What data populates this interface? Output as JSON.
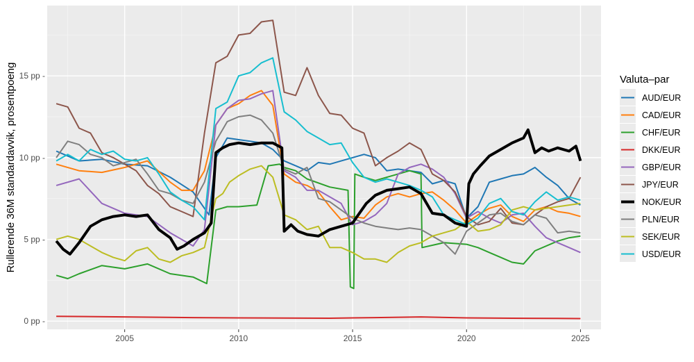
{
  "chart_data": {
    "type": "line",
    "title": "",
    "xlabel": "",
    "ylabel": "Rullerende 36M standardavvik, prosentpoeng",
    "xlim": [
      2001.6,
      2025.9
    ],
    "ylim": [
      -0.5,
      19.3
    ],
    "x_ticks": [
      2005,
      2010,
      2015,
      2020,
      2025
    ],
    "x_tick_labels": [
      "2005",
      "2010",
      "2015",
      "2020",
      "2025"
    ],
    "y_ticks": [
      0,
      5,
      10,
      15
    ],
    "y_tick_labels": [
      "0 pp -",
      "5 pp -",
      "10 pp -",
      "15 pp -"
    ],
    "grid": true,
    "legend_title": "Valuta–par",
    "legend_position": "right",
    "series": [
      {
        "name": "AUD/EUR",
        "color": "#1f77b4",
        "width": 2,
        "x": [
          2002,
          2003,
          2004,
          2005,
          2006,
          2007,
          2008,
          2008.7,
          2009,
          2009.5,
          2010,
          2010.5,
          2011,
          2011.5,
          2012,
          2012.5,
          2013,
          2013.5,
          2014,
          2014.5,
          2015,
          2015.5,
          2016,
          2016.5,
          2017,
          2017.5,
          2018,
          2018.5,
          2019,
          2019.5,
          2020,
          2020.5,
          2021,
          2021.5,
          2022,
          2022.5,
          2023,
          2023.5,
          2024,
          2024.5,
          2025
        ],
        "y": [
          10.4,
          9.8,
          9.9,
          9.6,
          9.5,
          8.8,
          7.9,
          6.5,
          10.0,
          11.2,
          11.1,
          11.0,
          10.9,
          10.5,
          9.8,
          9.5,
          9.2,
          9.7,
          9.6,
          9.8,
          10.0,
          10.2,
          10.0,
          9.2,
          9.3,
          9.2,
          9.1,
          8.4,
          8.6,
          8.4,
          6.3,
          7.0,
          8.5,
          8.7,
          8.9,
          9.0,
          9.4,
          8.8,
          8.3,
          7.5,
          7.1
        ]
      },
      {
        "name": "CAD/EUR",
        "color": "#ff7f0e",
        "width": 2,
        "x": [
          2002,
          2003,
          2004,
          2005,
          2006,
          2007,
          2007.5,
          2008,
          2008.5,
          2009,
          2009.5,
          2010,
          2010.5,
          2011,
          2011.5,
          2012,
          2012.5,
          2013,
          2013.5,
          2014,
          2014.5,
          2015,
          2015.5,
          2016,
          2016.5,
          2017,
          2017.5,
          2018,
          2018.5,
          2019,
          2019.5,
          2020,
          2020.5,
          2021,
          2021.5,
          2022,
          2022.5,
          2023,
          2023.5,
          2024,
          2024.5,
          2025
        ],
        "y": [
          9.6,
          9.2,
          9.1,
          9.4,
          9.8,
          8.5,
          8.0,
          8.0,
          9.2,
          12.0,
          13.0,
          13.3,
          13.8,
          14.1,
          13.2,
          9.0,
          8.5,
          8.3,
          7.9,
          7.0,
          6.2,
          6.4,
          6.3,
          7.1,
          7.6,
          7.8,
          7.6,
          7.8,
          7.9,
          7.4,
          6.8,
          6.0,
          6.5,
          6.9,
          7.1,
          6.4,
          6.1,
          6.8,
          7.0,
          6.7,
          6.6,
          6.4
        ]
      },
      {
        "name": "CHF/EUR",
        "color": "#2ca02c",
        "width": 2,
        "x": [
          2002,
          2002.5,
          2003,
          2004,
          2005,
          2006,
          2007,
          2008,
          2008.6,
          2009,
          2009.5,
          2010,
          2010.8,
          2011.3,
          2011.8,
          2012,
          2012.5,
          2013,
          2014,
          2014.8,
          2014.9,
          2015.05,
          2015.1,
          2015.5,
          2016,
          2017,
          2017.5,
          2018,
          2018.05,
          2019,
          2020,
          2020.5,
          2021,
          2021.5,
          2022,
          2022.5,
          2023,
          2024,
          2024.5,
          2025
        ],
        "y": [
          2.8,
          2.6,
          2.9,
          3.4,
          3.2,
          3.5,
          2.9,
          2.7,
          2.3,
          6.8,
          7.0,
          7.0,
          7.1,
          9.5,
          9.6,
          9.4,
          9.2,
          8.7,
          8.2,
          8.0,
          2.1,
          2.0,
          9.0,
          8.8,
          8.6,
          9.0,
          9.2,
          9.0,
          4.5,
          4.8,
          4.7,
          4.5,
          4.2,
          3.9,
          3.6,
          3.5,
          4.3,
          4.9,
          5.1,
          5.2
        ]
      },
      {
        "name": "DKK/EUR",
        "color": "#d62728",
        "width": 2,
        "x": [
          2002,
          2005,
          2008,
          2010,
          2012,
          2014,
          2016,
          2018,
          2020,
          2022,
          2024,
          2025
        ],
        "y": [
          0.3,
          0.26,
          0.22,
          0.2,
          0.19,
          0.18,
          0.22,
          0.26,
          0.2,
          0.18,
          0.17,
          0.16
        ]
      },
      {
        "name": "GBP/EUR",
        "color": "#9467bd",
        "width": 2,
        "x": [
          2002,
          2003,
          2004,
          2005,
          2006,
          2007,
          2008,
          2008.5,
          2009,
          2009.5,
          2010,
          2010.5,
          2011,
          2011.5,
          2012,
          2012.5,
          2013,
          2013.5,
          2014,
          2014.5,
          2015,
          2015.5,
          2016,
          2016.5,
          2017,
          2017.5,
          2018,
          2018.5,
          2019,
          2019.5,
          2020,
          2020.5,
          2021,
          2021.5,
          2022,
          2022.5,
          2023,
          2023.5,
          2024,
          2024.5,
          2025
        ],
        "y": [
          8.3,
          8.7,
          7.2,
          6.6,
          6.4,
          5.4,
          4.6,
          5.6,
          12.0,
          13.0,
          13.5,
          13.6,
          13.9,
          14.1,
          9.2,
          8.8,
          8.0,
          8.0,
          7.6,
          7.2,
          5.9,
          6.1,
          6.5,
          7.2,
          9.0,
          9.4,
          9.6,
          9.3,
          8.8,
          7.8,
          6.3,
          6.7,
          6.3,
          6.0,
          6.5,
          6.6,
          5.8,
          5.1,
          4.8,
          4.5,
          4.2
        ]
      },
      {
        "name": "JPY/EUR",
        "color": "#8c564b",
        "width": 2,
        "x": [
          2002,
          2002.5,
          2003,
          2003.5,
          2004,
          2004.5,
          2005,
          2005.5,
          2006,
          2006.5,
          2007,
          2007.5,
          2008,
          2008.5,
          2009,
          2009.5,
          2010,
          2010.5,
          2011,
          2011.5,
          2012,
          2012.5,
          2013,
          2013.5,
          2014,
          2014.5,
          2015,
          2015.5,
          2016,
          2016.5,
          2017,
          2017.5,
          2018,
          2018.5,
          2019,
          2019.5,
          2020,
          2020.5,
          2021,
          2021.5,
          2022,
          2022.5,
          2023,
          2023.5,
          2024,
          2024.5,
          2025
        ],
        "y": [
          13.3,
          13.1,
          11.8,
          11.5,
          10.3,
          10.0,
          9.6,
          9.2,
          8.3,
          7.8,
          7.0,
          6.7,
          6.4,
          11.5,
          15.8,
          16.2,
          17.5,
          17.6,
          18.3,
          18.4,
          14.0,
          13.8,
          15.5,
          13.8,
          12.7,
          12.6,
          11.8,
          11.5,
          9.5,
          10.0,
          10.4,
          10.9,
          10.5,
          9.0,
          8.6,
          7.9,
          6.4,
          5.9,
          6.1,
          6.9,
          6.0,
          5.9,
          6.5,
          7.0,
          7.3,
          7.5,
          8.8
        ]
      },
      {
        "name": "NOK/EUR",
        "color": "#000000",
        "width": 4,
        "x": [
          2002,
          2002.3,
          2002.6,
          2003,
          2003.5,
          2004,
          2004.5,
          2005,
          2005.5,
          2006,
          2006.5,
          2007,
          2007.3,
          2007.6,
          2008,
          2008.5,
          2008.8,
          2009,
          2009.3,
          2009.6,
          2010,
          2010.5,
          2011,
          2011.5,
          2011.9,
          2012,
          2012.3,
          2012.6,
          2013,
          2013.5,
          2014,
          2014.5,
          2015,
          2015.3,
          2015.6,
          2016,
          2016.5,
          2017,
          2017.5,
          2018,
          2018.5,
          2019,
          2019.5,
          2020,
          2020.1,
          2020.3,
          2020.6,
          2021,
          2021.5,
          2022,
          2022.5,
          2022.7,
          2023,
          2023.3,
          2023.6,
          2024,
          2024.5,
          2024.8,
          2025
        ],
        "y": [
          4.9,
          4.4,
          4.1,
          4.8,
          5.8,
          6.2,
          6.4,
          6.5,
          6.4,
          6.5,
          5.6,
          5.1,
          4.4,
          4.6,
          5.0,
          5.4,
          6.0,
          10.3,
          10.6,
          10.8,
          10.9,
          10.8,
          10.9,
          10.9,
          10.6,
          5.5,
          5.9,
          5.5,
          5.3,
          5.2,
          5.6,
          5.8,
          6.0,
          6.6,
          7.2,
          7.7,
          8.0,
          8.1,
          8.2,
          7.8,
          6.6,
          6.5,
          6.0,
          5.8,
          8.4,
          9.0,
          9.5,
          10.1,
          10.5,
          10.9,
          11.2,
          11.7,
          10.3,
          10.6,
          10.4,
          10.6,
          10.4,
          10.7,
          9.8
        ]
      },
      {
        "name": "PLN/EUR",
        "color": "#7f7f7f",
        "width": 2,
        "x": [
          2002,
          2002.5,
          2003,
          2003.5,
          2004,
          2004.5,
          2005,
          2005.5,
          2006,
          2006.5,
          2007,
          2007.5,
          2008,
          2008.5,
          2009,
          2009.5,
          2010,
          2010.5,
          2011,
          2011.5,
          2012,
          2012.5,
          2013,
          2013.5,
          2014,
          2014.5,
          2015,
          2015.5,
          2016,
          2016.5,
          2017,
          2017.5,
          2018,
          2018.5,
          2019,
          2019.5,
          2020,
          2020.5,
          2021,
          2021.5,
          2022,
          2022.5,
          2023,
          2023.5,
          2024,
          2024.5,
          2025
        ],
        "y": [
          10.0,
          11.0,
          10.8,
          10.2,
          10.0,
          9.5,
          9.7,
          9.9,
          9.0,
          8.0,
          7.8,
          7.4,
          7.2,
          8.5,
          11.0,
          12.2,
          12.5,
          12.6,
          12.3,
          11.5,
          9.3,
          9.0,
          9.4,
          7.5,
          7.3,
          6.8,
          6.3,
          6.0,
          5.8,
          5.7,
          5.6,
          5.7,
          5.6,
          5.2,
          4.8,
          4.1,
          5.5,
          6.0,
          6.5,
          6.6,
          6.1,
          5.9,
          6.5,
          6.3,
          5.4,
          5.5,
          5.4
        ]
      },
      {
        "name": "SEK/EUR",
        "color": "#bcbd22",
        "width": 2,
        "x": [
          2002,
          2002.5,
          2003,
          2003.5,
          2004,
          2004.5,
          2005,
          2005.5,
          2006,
          2006.5,
          2007,
          2007.5,
          2008,
          2008.5,
          2009,
          2009.3,
          2009.6,
          2010,
          2010.5,
          2011,
          2011.5,
          2012,
          2012.5,
          2013,
          2013.5,
          2014,
          2014.5,
          2015,
          2015.5,
          2016,
          2016.5,
          2017,
          2017.5,
          2018,
          2018.5,
          2019,
          2019.5,
          2020,
          2020.5,
          2021,
          2021.5,
          2022,
          2022.5,
          2023,
          2023.5,
          2024,
          2024.5,
          2025
        ],
        "y": [
          5.0,
          5.2,
          5.0,
          4.6,
          4.2,
          3.9,
          3.7,
          4.3,
          4.5,
          3.8,
          3.6,
          4.0,
          4.2,
          4.5,
          7.5,
          7.8,
          8.5,
          8.9,
          9.3,
          9.5,
          8.8,
          6.5,
          6.2,
          5.6,
          5.8,
          4.5,
          4.5,
          4.2,
          3.8,
          3.8,
          3.6,
          4.2,
          4.6,
          4.8,
          5.2,
          5.4,
          5.6,
          6.1,
          5.5,
          5.6,
          5.9,
          6.8,
          7.0,
          6.8,
          6.9,
          7.0,
          7.1,
          7.2
        ]
      },
      {
        "name": "USD/EUR",
        "color": "#17becf",
        "width": 2,
        "x": [
          2002,
          2002.5,
          2003,
          2003.5,
          2004,
          2004.5,
          2005,
          2005.5,
          2006,
          2006.5,
          2007,
          2007.5,
          2008,
          2008.5,
          2009,
          2009.5,
          2010,
          2010.5,
          2011,
          2011.5,
          2012,
          2012.5,
          2013,
          2013.5,
          2014,
          2014.5,
          2015,
          2015.5,
          2016,
          2016.5,
          2017,
          2017.5,
          2018,
          2018.5,
          2019,
          2019.5,
          2020,
          2020.5,
          2021,
          2021.5,
          2022,
          2022.5,
          2023,
          2023.5,
          2024,
          2024.5,
          2025
        ],
        "y": [
          9.8,
          10.2,
          9.8,
          10.5,
          10.2,
          10.4,
          9.9,
          9.8,
          10.0,
          9.0,
          7.9,
          7.4,
          7.0,
          6.2,
          13.0,
          13.4,
          15.0,
          15.2,
          15.8,
          16.1,
          12.8,
          12.3,
          11.6,
          11.2,
          10.8,
          10.9,
          9.7,
          8.8,
          8.5,
          8.7,
          8.5,
          8.3,
          8.0,
          7.6,
          6.5,
          6.2,
          5.9,
          6.3,
          7.2,
          7.5,
          6.7,
          6.5,
          7.3,
          7.9,
          7.4,
          7.6,
          7.4
        ]
      }
    ]
  }
}
